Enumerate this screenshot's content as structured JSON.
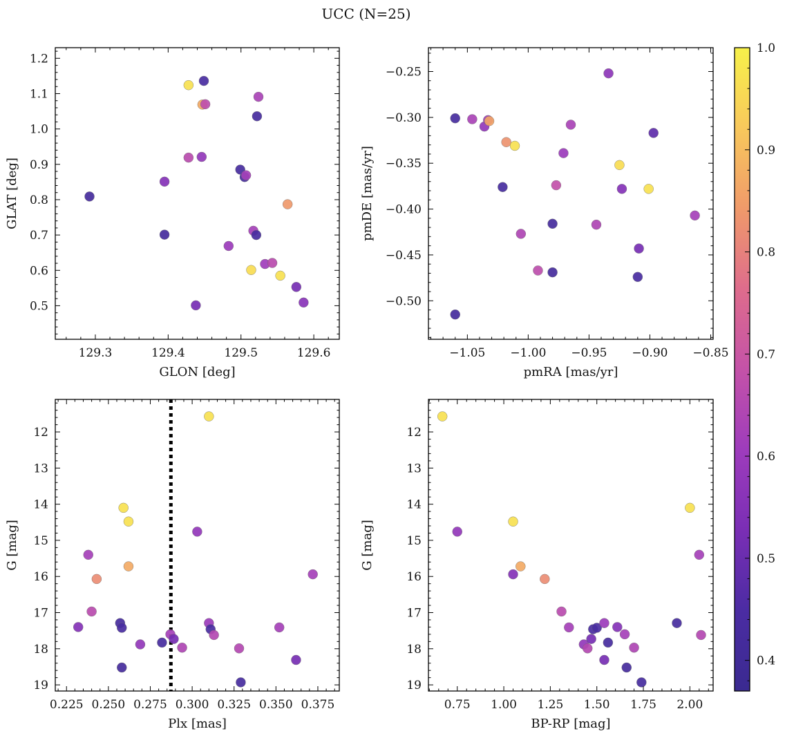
{
  "title": "UCC (N=25)",
  "colorbar": {
    "range": [
      0.37,
      1.0
    ],
    "ticks": [
      0.4,
      0.5,
      0.6,
      0.7,
      0.8,
      0.9,
      1.0
    ],
    "tick_labels": [
      "0.4",
      "0.5",
      "0.6",
      "0.7",
      "0.8",
      "0.9",
      "1.0"
    ],
    "colormap": "plasma",
    "stops": [
      "#3a2a90",
      "#4b2ca3",
      "#7a2eb5",
      "#9e3cbc",
      "#c452a8",
      "#de6c8c",
      "#f09a6a",
      "#f8c85c",
      "#f7f14a"
    ]
  },
  "chart_data": [
    {
      "type": "scatter",
      "panel": "top-left",
      "xlabel": "GLON [deg]",
      "ylabel": "GLAT [deg]",
      "xlim": [
        129.245,
        129.635
      ],
      "ylim": [
        0.405,
        1.23
      ],
      "y_inverted": false,
      "xticks": [
        129.3,
        129.4,
        129.5,
        129.6
      ],
      "xtick_labels": [
        "129.3",
        "129.4",
        "129.5",
        "129.6"
      ],
      "yticks": [
        0.5,
        0.6,
        0.7,
        0.8,
        0.9,
        1.0,
        1.1,
        1.2
      ],
      "ytick_labels": [
        "0.5",
        "0.6",
        "0.7",
        "0.8",
        "0.9",
        "1.0",
        "1.1",
        "1.2"
      ],
      "points": [
        {
          "x": 129.292,
          "y": 0.809,
          "c": 0.42
        },
        {
          "x": 129.395,
          "y": 0.701,
          "c": 0.42
        },
        {
          "x": 129.395,
          "y": 0.851,
          "c": 0.55
        },
        {
          "x": 129.428,
          "y": 1.124,
          "c": 0.97
        },
        {
          "x": 129.428,
          "y": 0.919,
          "c": 0.66
        },
        {
          "x": 129.438,
          "y": 0.501,
          "c": 0.52
        },
        {
          "x": 129.446,
          "y": 0.921,
          "c": 0.58
        },
        {
          "x": 129.447,
          "y": 1.069,
          "c": 0.87
        },
        {
          "x": 129.449,
          "y": 1.136,
          "c": 0.44
        },
        {
          "x": 129.451,
          "y": 1.07,
          "c": 0.67
        },
        {
          "x": 129.483,
          "y": 0.669,
          "c": 0.6
        },
        {
          "x": 129.499,
          "y": 0.885,
          "c": 0.43
        },
        {
          "x": 129.505,
          "y": 0.864,
          "c": 0.43
        },
        {
          "x": 129.507,
          "y": 0.869,
          "c": 0.62
        },
        {
          "x": 129.514,
          "y": 0.601,
          "c": 0.96
        },
        {
          "x": 129.517,
          "y": 0.712,
          "c": 0.62
        },
        {
          "x": 129.521,
          "y": 0.7,
          "c": 0.43
        },
        {
          "x": 129.522,
          "y": 1.036,
          "c": 0.43
        },
        {
          "x": 129.524,
          "y": 1.091,
          "c": 0.63
        },
        {
          "x": 129.533,
          "y": 0.618,
          "c": 0.61
        },
        {
          "x": 129.543,
          "y": 0.621,
          "c": 0.66
        },
        {
          "x": 129.554,
          "y": 0.585,
          "c": 0.97
        },
        {
          "x": 129.564,
          "y": 0.787,
          "c": 0.84
        },
        {
          "x": 129.576,
          "y": 0.553,
          "c": 0.52
        },
        {
          "x": 129.586,
          "y": 0.509,
          "c": 0.56
        }
      ]
    },
    {
      "type": "scatter",
      "panel": "top-right",
      "xlabel": "pmRA [mas/yr]",
      "ylabel": "pmDE [mas/yr]",
      "xlim": [
        -1.082,
        -0.848
      ],
      "ylim": [
        -0.542,
        -0.224
      ],
      "y_inverted": false,
      "xticks": [
        -1.05,
        -1.0,
        -0.95,
        -0.9,
        -0.85
      ],
      "xtick_labels": [
        "−1.05",
        "−1.00",
        "−0.95",
        "−0.90",
        "−0.85"
      ],
      "yticks": [
        -0.5,
        -0.45,
        -0.4,
        -0.35,
        -0.3,
        -0.25
      ],
      "ytick_labels": [
        "−0.50",
        "−0.45",
        "−0.40",
        "−0.35",
        "−0.30",
        "−0.25"
      ],
      "points": [
        {
          "x": -1.06,
          "y": -0.301,
          "c": 0.43
        },
        {
          "x": -1.06,
          "y": -0.515,
          "c": 0.42
        },
        {
          "x": -1.046,
          "y": -0.302,
          "c": 0.63
        },
        {
          "x": -1.036,
          "y": -0.31,
          "c": 0.58
        },
        {
          "x": -1.033,
          "y": -0.303,
          "c": 0.61
        },
        {
          "x": -1.032,
          "y": -0.304,
          "c": 0.86
        },
        {
          "x": -1.021,
          "y": -0.376,
          "c": 0.43
        },
        {
          "x": -1.018,
          "y": -0.327,
          "c": 0.83
        },
        {
          "x": -1.011,
          "y": -0.331,
          "c": 0.97
        },
        {
          "x": -1.006,
          "y": -0.427,
          "c": 0.64
        },
        {
          "x": -0.992,
          "y": -0.467,
          "c": 0.67
        },
        {
          "x": -0.98,
          "y": -0.469,
          "c": 0.42
        },
        {
          "x": -0.98,
          "y": -0.416,
          "c": 0.42
        },
        {
          "x": -0.977,
          "y": -0.374,
          "c": 0.68
        },
        {
          "x": -0.971,
          "y": -0.339,
          "c": 0.6
        },
        {
          "x": -0.965,
          "y": -0.308,
          "c": 0.63
        },
        {
          "x": -0.944,
          "y": -0.417,
          "c": 0.64
        },
        {
          "x": -0.934,
          "y": -0.252,
          "c": 0.57
        },
        {
          "x": -0.925,
          "y": -0.352,
          "c": 0.96
        },
        {
          "x": -0.923,
          "y": -0.378,
          "c": 0.55
        },
        {
          "x": -0.91,
          "y": -0.474,
          "c": 0.44
        },
        {
          "x": -0.909,
          "y": -0.443,
          "c": 0.52
        },
        {
          "x": -0.901,
          "y": -0.378,
          "c": 0.97
        },
        {
          "x": -0.897,
          "y": -0.317,
          "c": 0.48
        },
        {
          "x": -0.863,
          "y": -0.407,
          "c": 0.62
        }
      ]
    },
    {
      "type": "scatter",
      "panel": "bottom-left",
      "xlabel": "Plx [mas]",
      "ylabel": "G [mag]",
      "xlim": [
        0.2183,
        0.3878
      ],
      "ylim": [
        19.17,
        11.1
      ],
      "y_inverted": true,
      "vline": {
        "x": 0.2873,
        "style": "dotted"
      },
      "xticks": [
        0.225,
        0.25,
        0.275,
        0.3,
        0.325,
        0.35,
        0.375
      ],
      "xtick_labels": [
        "0.225",
        "0.250",
        "0.275",
        "0.300",
        "0.325",
        "0.350",
        "0.375"
      ],
      "yticks": [
        12,
        13,
        14,
        15,
        16,
        17,
        18,
        19
      ],
      "ytick_labels": [
        "12",
        "13",
        "14",
        "15",
        "16",
        "17",
        "18",
        "19"
      ],
      "points": [
        {
          "x": 0.232,
          "y": 17.4,
          "c": 0.55
        },
        {
          "x": 0.238,
          "y": 15.4,
          "c": 0.62
        },
        {
          "x": 0.24,
          "y": 16.97,
          "c": 0.66
        },
        {
          "x": 0.243,
          "y": 16.07,
          "c": 0.82
        },
        {
          "x": 0.257,
          "y": 17.29,
          "c": 0.43
        },
        {
          "x": 0.258,
          "y": 17.42,
          "c": 0.44
        },
        {
          "x": 0.258,
          "y": 18.52,
          "c": 0.42
        },
        {
          "x": 0.259,
          "y": 14.1,
          "c": 0.97
        },
        {
          "x": 0.262,
          "y": 14.48,
          "c": 0.97
        },
        {
          "x": 0.262,
          "y": 15.72,
          "c": 0.87
        },
        {
          "x": 0.269,
          "y": 17.88,
          "c": 0.58
        },
        {
          "x": 0.282,
          "y": 17.83,
          "c": 0.43
        },
        {
          "x": 0.287,
          "y": 17.6,
          "c": 0.62
        },
        {
          "x": 0.289,
          "y": 17.73,
          "c": 0.52
        },
        {
          "x": 0.294,
          "y": 17.97,
          "c": 0.64
        },
        {
          "x": 0.303,
          "y": 14.76,
          "c": 0.58
        },
        {
          "x": 0.31,
          "y": 11.57,
          "c": 0.97
        },
        {
          "x": 0.31,
          "y": 17.29,
          "c": 0.6
        },
        {
          "x": 0.311,
          "y": 17.46,
          "c": 0.44
        },
        {
          "x": 0.313,
          "y": 17.62,
          "c": 0.65
        },
        {
          "x": 0.328,
          "y": 17.99,
          "c": 0.65
        },
        {
          "x": 0.329,
          "y": 18.93,
          "c": 0.43
        },
        {
          "x": 0.352,
          "y": 17.41,
          "c": 0.62
        },
        {
          "x": 0.362,
          "y": 18.31,
          "c": 0.52
        },
        {
          "x": 0.372,
          "y": 15.94,
          "c": 0.62
        }
      ]
    },
    {
      "type": "scatter",
      "panel": "bottom-right",
      "xlabel": "BP-RP [mag]",
      "ylabel": "G [mag]",
      "xlim": [
        0.595,
        2.125
      ],
      "ylim": [
        19.17,
        11.1
      ],
      "y_inverted": true,
      "xticks": [
        0.75,
        1.0,
        1.25,
        1.5,
        1.75,
        2.0
      ],
      "xtick_labels": [
        "0.75",
        "1.00",
        "1.25",
        "1.50",
        "1.75",
        "2.00"
      ],
      "yticks": [
        12,
        13,
        14,
        15,
        16,
        17,
        18,
        19
      ],
      "ytick_labels": [
        "12",
        "13",
        "14",
        "15",
        "16",
        "17",
        "18",
        "19"
      ],
      "points": [
        {
          "x": 0.67,
          "y": 11.57,
          "c": 0.97
        },
        {
          "x": 0.75,
          "y": 14.76,
          "c": 0.58
        },
        {
          "x": 1.05,
          "y": 14.48,
          "c": 0.97
        },
        {
          "x": 1.05,
          "y": 15.94,
          "c": 0.55
        },
        {
          "x": 1.09,
          "y": 15.72,
          "c": 0.87
        },
        {
          "x": 1.22,
          "y": 16.07,
          "c": 0.82
        },
        {
          "x": 1.31,
          "y": 16.97,
          "c": 0.66
        },
        {
          "x": 1.35,
          "y": 17.41,
          "c": 0.62
        },
        {
          "x": 1.43,
          "y": 17.88,
          "c": 0.58
        },
        {
          "x": 1.45,
          "y": 17.99,
          "c": 0.65
        },
        {
          "x": 1.47,
          "y": 17.73,
          "c": 0.52
        },
        {
          "x": 1.48,
          "y": 17.46,
          "c": 0.44
        },
        {
          "x": 1.5,
          "y": 17.42,
          "c": 0.44
        },
        {
          "x": 1.54,
          "y": 17.29,
          "c": 0.6
        },
        {
          "x": 1.54,
          "y": 18.31,
          "c": 0.52
        },
        {
          "x": 1.56,
          "y": 17.83,
          "c": 0.43
        },
        {
          "x": 1.61,
          "y": 17.4,
          "c": 0.55
        },
        {
          "x": 1.65,
          "y": 17.6,
          "c": 0.62
        },
        {
          "x": 1.66,
          "y": 18.52,
          "c": 0.42
        },
        {
          "x": 1.7,
          "y": 17.97,
          "c": 0.64
        },
        {
          "x": 1.74,
          "y": 18.93,
          "c": 0.43
        },
        {
          "x": 1.93,
          "y": 17.29,
          "c": 0.43
        },
        {
          "x": 2.0,
          "y": 14.1,
          "c": 0.97
        },
        {
          "x": 2.05,
          "y": 15.4,
          "c": 0.62
        },
        {
          "x": 2.06,
          "y": 17.62,
          "c": 0.65
        }
      ]
    }
  ]
}
